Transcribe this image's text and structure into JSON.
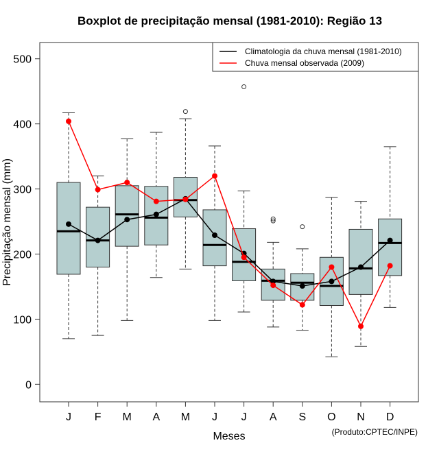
{
  "chart_data": {
    "type": "boxplot",
    "title": "Boxplot de precipitação mensal (1981-2010): Região 13",
    "xlabel": "Meses",
    "ylabel": "Precipitação mensal (mm)",
    "ylim": [
      -27,
      525
    ],
    "yticks": [
      0,
      100,
      200,
      300,
      400,
      500
    ],
    "categories": [
      "J",
      "F",
      "M",
      "A",
      "M",
      "J",
      "J",
      "A",
      "S",
      "O",
      "N",
      "D"
    ],
    "box_color": "#b5cfcf",
    "boxes": [
      {
        "low": 70,
        "q1": 169,
        "median": 235,
        "q3": 310,
        "high": 417,
        "outliers": []
      },
      {
        "low": 75,
        "q1": 180,
        "median": 221,
        "q3": 272,
        "high": 320,
        "outliers": []
      },
      {
        "low": 98,
        "q1": 212,
        "median": 261,
        "q3": 305,
        "high": 377,
        "outliers": []
      },
      {
        "low": 164,
        "q1": 214,
        "median": 256,
        "q3": 304,
        "high": 387,
        "outliers": []
      },
      {
        "low": 177,
        "q1": 257,
        "median": 283,
        "q3": 318,
        "high": 408,
        "outliers": [
          419
        ]
      },
      {
        "low": 98,
        "q1": 182,
        "median": 214,
        "q3": 268,
        "high": 366,
        "outliers": []
      },
      {
        "low": 111,
        "q1": 159,
        "median": 188,
        "q3": 239,
        "high": 297,
        "outliers": [
          457
        ]
      },
      {
        "low": 88,
        "q1": 129,
        "median": 159,
        "q3": 177,
        "high": 218,
        "outliers": [
          251,
          254
        ]
      },
      {
        "low": 83,
        "q1": 129,
        "median": 156,
        "q3": 170,
        "high": 208,
        "outliers": [
          242
        ]
      },
      {
        "low": 42,
        "q1": 121,
        "median": 151,
        "q3": 195,
        "high": 287,
        "outliers": []
      },
      {
        "low": 58,
        "q1": 138,
        "median": 178,
        "q3": 238,
        "high": 281,
        "outliers": []
      },
      {
        "low": 118,
        "q1": 167,
        "median": 217,
        "q3": 254,
        "high": 365,
        "outliers": []
      }
    ],
    "series": [
      {
        "name": "Climatologia da chuva mensal (1981-2010)",
        "color": "#000000",
        "values": [
          246,
          221,
          253,
          261,
          285,
          229,
          201,
          158,
          151,
          158,
          180,
          221
        ]
      },
      {
        "name": "Chuva mensal observada (2009)",
        "color": "#ff0000",
        "values": [
          404,
          299,
          310,
          281,
          284,
          320,
          195,
          152,
          122,
          180,
          89,
          182
        ]
      }
    ],
    "legend_position": "top-right",
    "annotation": "(Produto:CPTEC/INPE)"
  }
}
